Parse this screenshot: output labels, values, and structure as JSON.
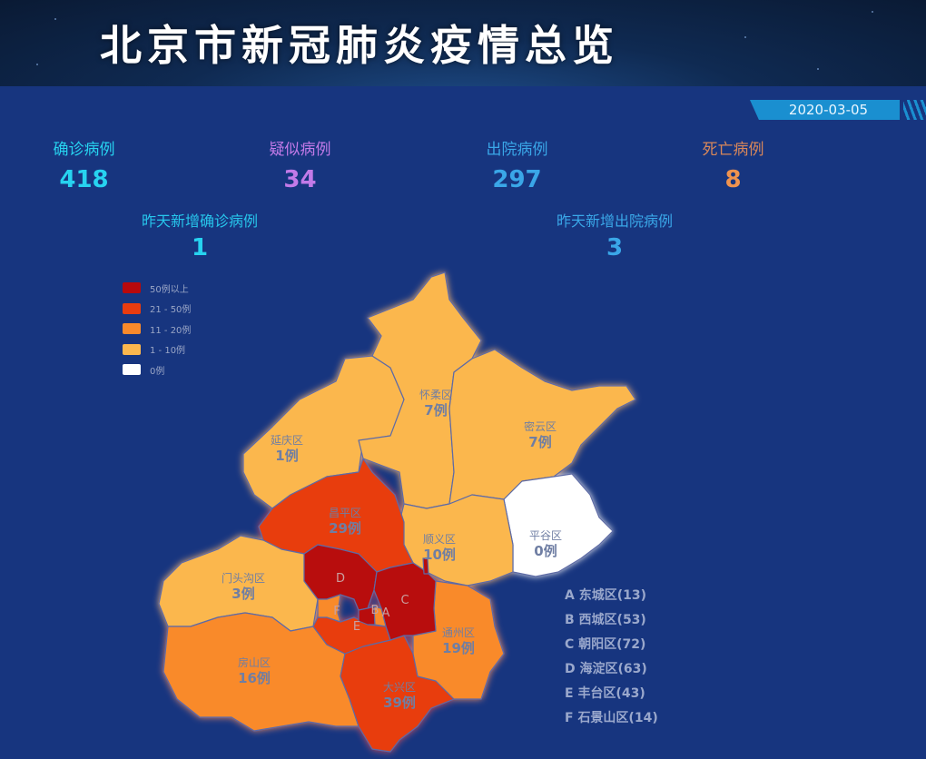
{
  "header": {
    "title": "北京市新冠肺炎疫情总览",
    "date": "2020-03-05"
  },
  "stats": [
    {
      "label": "确诊病例",
      "value": "418",
      "color": "#27d3f0"
    },
    {
      "label": "疑似病例",
      "value": "34",
      "color": "#c27ae8"
    },
    {
      "label": "出院病例",
      "value": "297",
      "color": "#3aa7e8"
    },
    {
      "label": "死亡病例",
      "value": "8",
      "color": "#f0934e"
    }
  ],
  "daily": [
    {
      "label": "昨天新增确诊病例",
      "value": "1",
      "color": "#27d3f0"
    },
    {
      "label": "昨天新增出院病例",
      "value": "3",
      "color": "#3aa7e8"
    }
  ],
  "legend": [
    {
      "label": "50例以上",
      "color": "#b8090c"
    },
    {
      "label": "21 - 50例",
      "color": "#e83c0f"
    },
    {
      "label": "11 - 20例",
      "color": "#f98a2b"
    },
    {
      "label": "1 - 10例",
      "color": "#fbb74e"
    },
    {
      "label": "0例",
      "color": "#ffffff"
    }
  ],
  "districts": [
    {
      "name": "延庆区",
      "value": "1例"
    },
    {
      "name": "怀柔区",
      "value": "7例"
    },
    {
      "name": "密云区",
      "value": "7例"
    },
    {
      "name": "平谷区",
      "value": "0例"
    },
    {
      "name": "顺义区",
      "value": "10例"
    },
    {
      "name": "昌平区",
      "value": "29例"
    },
    {
      "name": "门头沟区",
      "value": "3例"
    },
    {
      "name": "房山区",
      "value": "16例"
    },
    {
      "name": "大兴区",
      "value": "39例"
    },
    {
      "name": "通州区",
      "value": "19例"
    }
  ],
  "abbr": [
    "A",
    "B",
    "C",
    "D",
    "E",
    "F"
  ],
  "key": [
    "A 东城区(13)",
    "B 西城区(53)",
    "C 朝阳区(72)",
    "D 海淀区(63)",
    "E 丰台区(43)",
    "F 石景山区(14)"
  ]
}
